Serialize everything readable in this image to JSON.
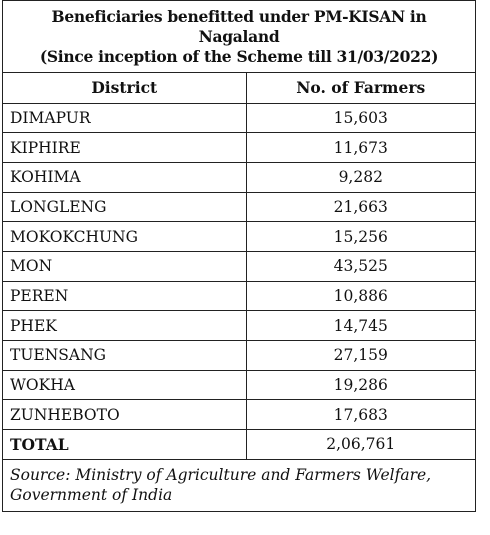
{
  "title": {
    "line1": "Beneficiaries benefitted under PM-KISAN in Nagaland",
    "line2": "(Since inception of the Scheme till 31/03/2022)"
  },
  "table": {
    "headers": [
      "District",
      "No. of Farmers"
    ],
    "rows": [
      {
        "district": "DIMAPUR",
        "farmers": "15,603"
      },
      {
        "district": "KIPHIRE",
        "farmers": "11,673"
      },
      {
        "district": "KOHIMA",
        "farmers": "9,282"
      },
      {
        "district": "LONGLENG",
        "farmers": "21,663"
      },
      {
        "district": "MOKOKCHUNG",
        "farmers": "15,256"
      },
      {
        "district": "MON",
        "farmers": "43,525"
      },
      {
        "district": "PEREN",
        "farmers": "10,886"
      },
      {
        "district": "PHEK",
        "farmers": "14,745"
      },
      {
        "district": "TUENSANG",
        "farmers": "27,159"
      },
      {
        "district": "WOKHA",
        "farmers": "19,286"
      },
      {
        "district": "ZUNHEBOTO",
        "farmers": "17,683"
      }
    ],
    "total": {
      "label": "TOTAL",
      "farmers": "2,06,761"
    }
  },
  "source": {
    "line1": "Source: Ministry of Agriculture and Farmers Welfare,",
    "line2": "Government of India"
  }
}
